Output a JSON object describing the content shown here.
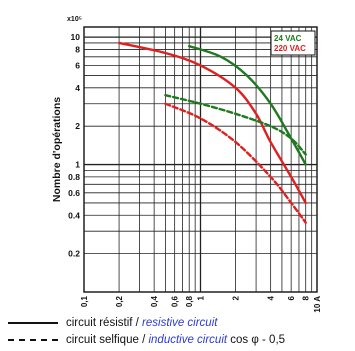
{
  "chart_data": {
    "type": "line",
    "title": "",
    "xlabel": "",
    "ylabel": "Nombre d'opérations",
    "y_multiplier_label": "x10⁵",
    "yscale": "log",
    "ylim": [
      0.1,
      12
    ],
    "yticks": [
      {
        "v": 10,
        "label": "10"
      },
      {
        "v": 8,
        "label": "8"
      },
      {
        "v": 6,
        "label": "6"
      },
      {
        "v": 4,
        "label": "4"
      },
      {
        "v": 2,
        "label": "2"
      },
      {
        "v": 1,
        "label": "1"
      },
      {
        "v": 0.8,
        "label": "0.8"
      },
      {
        "v": 0.6,
        "label": "0.6"
      },
      {
        "v": 0.4,
        "label": "0.4"
      },
      {
        "v": 0.2,
        "label": "0.2"
      }
    ],
    "xscale": "log",
    "xlim": [
      0.1,
      10
    ],
    "xticks": [
      {
        "v": 0.1,
        "label": "0,1"
      },
      {
        "v": 0.2,
        "label": "0,2"
      },
      {
        "v": 0.4,
        "label": "0,4"
      },
      {
        "v": 0.6,
        "label": "0,6"
      },
      {
        "v": 0.8,
        "label": "0,8"
      },
      {
        "v": 1,
        "label": "1"
      },
      {
        "v": 2,
        "label": "2"
      },
      {
        "v": 4,
        "label": "4"
      },
      {
        "v": 6,
        "label": "6"
      },
      {
        "v": 8,
        "label": "8"
      },
      {
        "v": 10,
        "label": "10 A"
      }
    ],
    "grid": true,
    "legend_position": "top-right",
    "legend": [
      {
        "label": "24 VAC",
        "color": "#1e7a1e"
      },
      {
        "label": "220 VAC",
        "color": "#e02020"
      }
    ],
    "series": [
      {
        "voltage": "24 VAC",
        "circuit": "resistive",
        "style": "solid",
        "color": "#1e7a1e",
        "x": [
          0.8,
          1.5,
          2.5,
          4,
          6,
          8
        ],
        "y": [
          8.5,
          7,
          5,
          3,
          1.6,
          1.0
        ]
      },
      {
        "voltage": "220 VAC",
        "circuit": "resistive",
        "style": "solid",
        "color": "#e02020",
        "x": [
          0.2,
          0.5,
          1,
          2,
          3,
          4,
          6,
          8
        ],
        "y": [
          9,
          7.5,
          6,
          4,
          2.5,
          1.5,
          0.8,
          0.5
        ]
      },
      {
        "voltage": "24 VAC",
        "circuit": "inductive",
        "style": "dashed",
        "color": "#1e7a1e",
        "x": [
          0.5,
          1,
          2,
          4,
          6,
          8
        ],
        "y": [
          3.5,
          3,
          2.5,
          2,
          1.6,
          1.2
        ]
      },
      {
        "voltage": "220 VAC",
        "circuit": "inductive",
        "style": "dashed",
        "color": "#e02020",
        "x": [
          0.5,
          1,
          2,
          4,
          6,
          8
        ],
        "y": [
          3,
          2.3,
          1.5,
          0.8,
          0.5,
          0.35
        ]
      }
    ]
  },
  "legend_rows": [
    {
      "fr": "circuit résistif",
      "sep": " / ",
      "en": "resistive circuit",
      "suffix": ""
    },
    {
      "fr": "circuit selfique",
      "sep": " / ",
      "en": "inductive circuit",
      "suffix": " cos φ - 0,5"
    }
  ]
}
